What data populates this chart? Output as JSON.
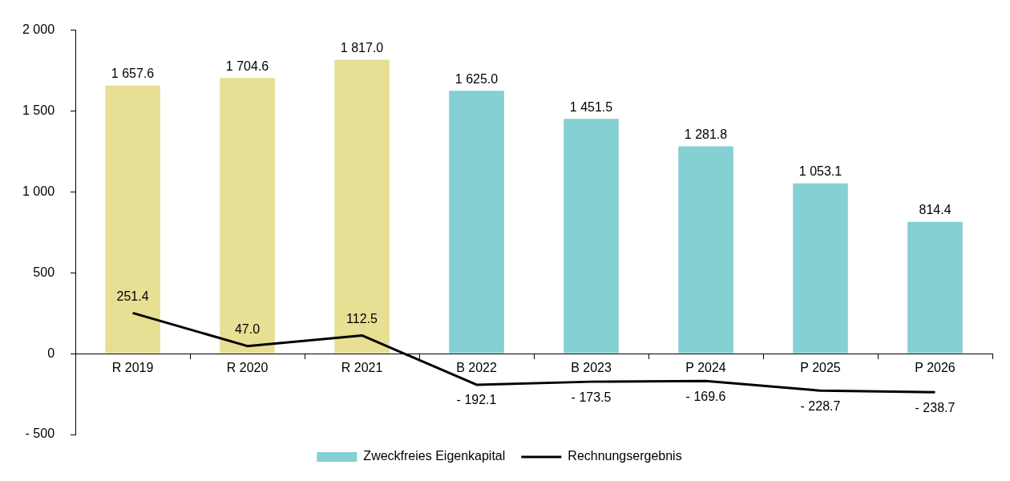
{
  "chart_data": {
    "type": "bar",
    "categories": [
      "R 2019",
      "R 2020",
      "R 2021",
      "B 2022",
      "B 2023",
      "P 2024",
      "P 2025",
      "P 2026"
    ],
    "series": [
      {
        "name": "Zweckfreies Eigenkapital",
        "color": "#84d0d2",
        "colors": [
          "#e6df94",
          "#e6df94",
          "#e6df94",
          "#84d0d2",
          "#84d0d2",
          "#84d0d2",
          "#84d0d2",
          "#84d0d2"
        ],
        "values": [
          1657.6,
          1704.6,
          1817.0,
          1625.0,
          1451.5,
          1281.8,
          1053.1,
          814.4
        ],
        "value_labels": [
          "1 657.6",
          "1 704.6",
          "1 817.0",
          "1 625.0",
          "1 451.5",
          "1 281.8",
          "1 053.1",
          "814.4"
        ]
      },
      {
        "name": "Rechnungsergebnis",
        "type": "line",
        "color": "#000000",
        "marker": "none",
        "values": [
          251.4,
          47.0,
          112.5,
          -192.1,
          -173.5,
          -169.6,
          -228.7,
          -238.7
        ],
        "value_labels": [
          "251.4",
          "47.0",
          "112.5",
          "- 192.1",
          "- 173.5",
          "- 169.6",
          "- 228.7",
          "- 238.7"
        ]
      }
    ],
    "ylim": [
      -500,
      2000
    ],
    "yticks": [
      {
        "value": -500,
        "label": "- 500"
      },
      0,
      500,
      {
        "value": 1000,
        "label": "1 000"
      },
      {
        "value": 1500,
        "label": "1 500"
      },
      {
        "value": 2000,
        "label": "2 000"
      }
    ],
    "grid": false,
    "legend": "bottom"
  }
}
